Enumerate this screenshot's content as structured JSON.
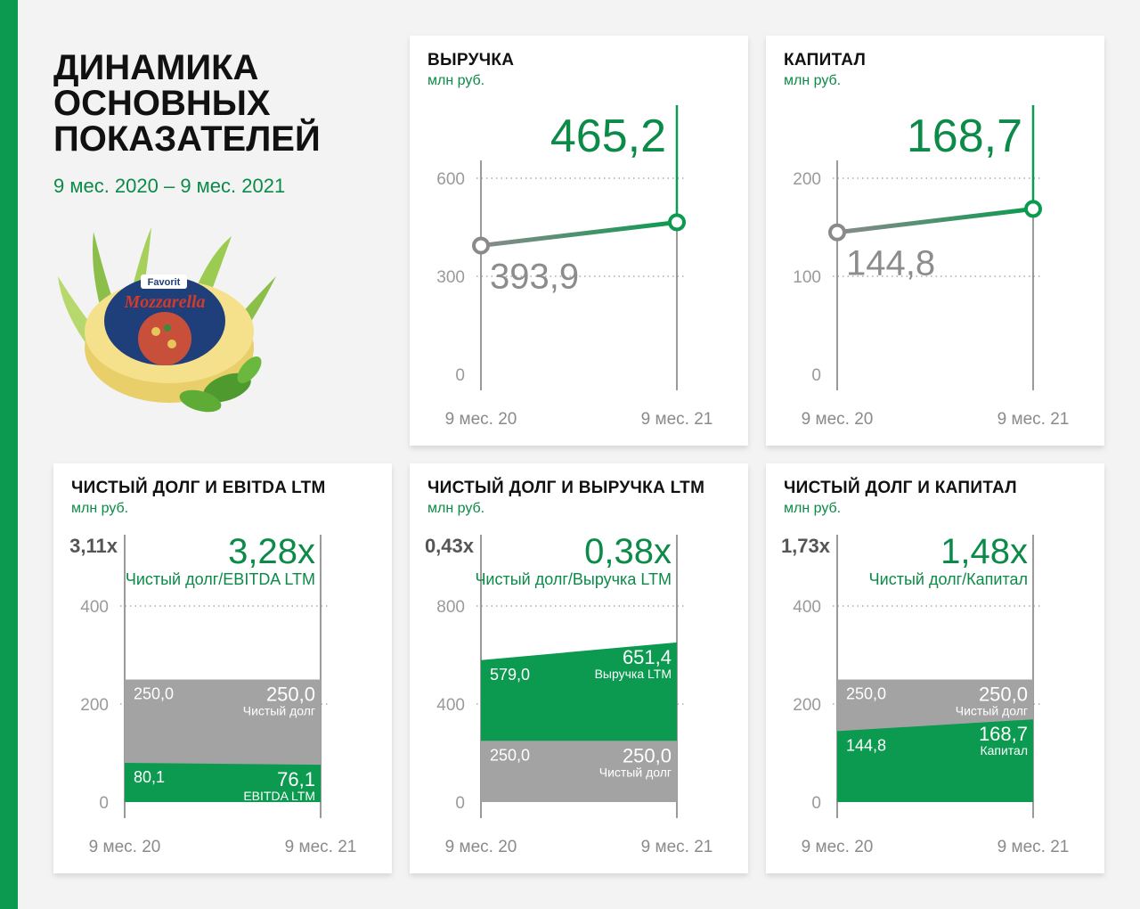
{
  "page": {
    "title_lines": [
      "ДИНАМИКА",
      "ОСНОВНЫХ",
      "ПОКАЗАТЕЛЕЙ"
    ],
    "period": "9 мес. 2020 – 9 мес. 2021",
    "colors": {
      "green": "#0b9a50",
      "grey": "#a0a0a0",
      "text_green": "#0b8a48"
    },
    "product": {
      "brand": "Favorit",
      "name": "Mozzarella"
    }
  },
  "chart_data": [
    {
      "type": "line",
      "title": "ВЫРУЧКА",
      "subtitle": "млн руб.",
      "categories": [
        "9 мес. 20",
        "9 мес. 21"
      ],
      "values": [
        393.9,
        465.2
      ],
      "labels": [
        "393,9",
        "465,2"
      ],
      "yticks": [
        0,
        300,
        600
      ],
      "ytick_labels": [
        "0",
        "300",
        "600"
      ],
      "ylim": [
        0,
        600
      ],
      "grid": true
    },
    {
      "type": "line",
      "title": "КАПИТАЛ",
      "subtitle": "млн руб.",
      "categories": [
        "9 мес. 20",
        "9 мес. 21"
      ],
      "values": [
        144.8,
        168.7
      ],
      "labels": [
        "144,8",
        "168,7"
      ],
      "yticks": [
        0,
        100,
        200
      ],
      "ytick_labels": [
        "0",
        "100",
        "200"
      ],
      "ylim": [
        0,
        200
      ],
      "grid": true
    },
    {
      "type": "area",
      "title": "ЧИСТЫЙ ДОЛГ И EBITDA LTM",
      "subtitle": "млн руб.",
      "categories": [
        "9 мес. 20",
        "9 мес. 21"
      ],
      "yticks": [
        0,
        200,
        400
      ],
      "ytick_labels": [
        "0",
        "200",
        "400"
      ],
      "ylim": [
        0,
        400
      ],
      "ratio": {
        "prev": "3,11x",
        "curr": "3,28x",
        "label": "Чистый долг/EBITDA LTM"
      },
      "series": [
        {
          "name": "EBITDA LTM",
          "values": [
            80.1,
            76.1
          ],
          "labels": [
            "80,1",
            "76,1"
          ],
          "color": "#0b9a50"
        },
        {
          "name": "Чистый долг",
          "values": [
            250.0,
            250.0
          ],
          "labels": [
            "250,0",
            "250,0"
          ],
          "color": "#a3a3a3"
        }
      ]
    },
    {
      "type": "area",
      "title": "ЧИСТЫЙ ДОЛГ И ВЫРУЧКА LTM",
      "subtitle": "млн руб.",
      "categories": [
        "9 мес. 20",
        "9 мес. 21"
      ],
      "yticks": [
        0,
        400,
        800
      ],
      "ytick_labels": [
        "0",
        "400",
        "800"
      ],
      "ylim": [
        0,
        800
      ],
      "ratio": {
        "prev": "0,43x",
        "curr": "0,38x",
        "label": "Чистый долг/Выручка LTM"
      },
      "series": [
        {
          "name": "Чистый долг",
          "values": [
            250.0,
            250.0
          ],
          "labels": [
            "250,0",
            "250,0"
          ],
          "color": "#a3a3a3"
        },
        {
          "name": "Выручка LTM",
          "values": [
            579.0,
            651.4
          ],
          "labels": [
            "579,0",
            "651,4"
          ],
          "color": "#0b9a50"
        }
      ]
    },
    {
      "type": "area",
      "title": "ЧИСТЫЙ ДОЛГ И КАПИТАЛ",
      "subtitle": "млн руб.",
      "categories": [
        "9 мес. 20",
        "9 мес. 21"
      ],
      "yticks": [
        0,
        200,
        400
      ],
      "ytick_labels": [
        "0",
        "200",
        "400"
      ],
      "ylim": [
        0,
        400
      ],
      "ratio": {
        "prev": "1,73x",
        "curr": "1,48x",
        "label": "Чистый долг/Капитал"
      },
      "series": [
        {
          "name": "Капитал",
          "values": [
            144.8,
            168.7
          ],
          "labels": [
            "144,8",
            "168,7"
          ],
          "color": "#0b9a50"
        },
        {
          "name": "Чистый долг",
          "values": [
            250.0,
            250.0
          ],
          "labels": [
            "250,0",
            "250,0"
          ],
          "color": "#a3a3a3"
        }
      ]
    }
  ]
}
